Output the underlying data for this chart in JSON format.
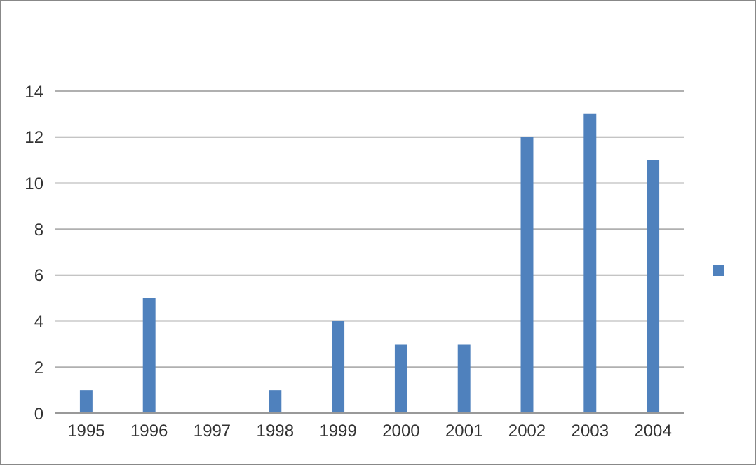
{
  "chart_data": {
    "type": "bar",
    "categories": [
      "1995",
      "1996",
      "1997",
      "1998",
      "1999",
      "2000",
      "2001",
      "2002",
      "2003",
      "2004"
    ],
    "series": [
      {
        "color": "#4f81bd",
        "values": [
          1,
          5,
          0,
          1,
          4,
          3,
          3,
          12,
          13,
          11
        ]
      }
    ],
    "ylim": [
      0,
      14
    ],
    "yticks": [
      0,
      2,
      4,
      6,
      8,
      10,
      12,
      14
    ],
    "grid": "y"
  }
}
